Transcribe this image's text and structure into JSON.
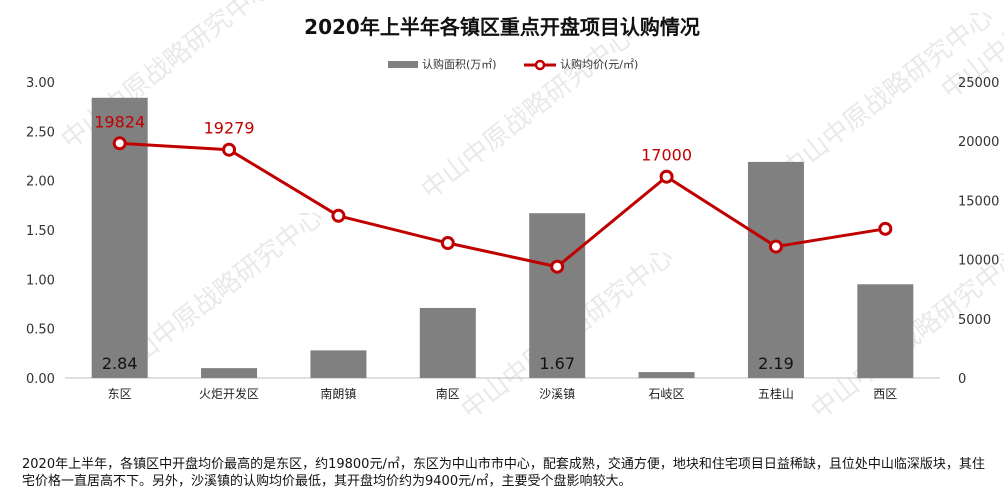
{
  "chart_data": {
    "type": "bar+line",
    "title": "2020年上半年各镇区重点开盘项目认购情况",
    "categories": [
      "东区",
      "火炬开发区",
      "南朗镇",
      "南区",
      "沙溪镇",
      "石岐区",
      "五桂山",
      "西区"
    ],
    "series": [
      {
        "name": "认购面积(万㎡)",
        "type": "bar",
        "axis": "left",
        "color": "#808080",
        "values": [
          2.84,
          0.1,
          0.28,
          0.71,
          1.67,
          0.06,
          2.19,
          0.95
        ]
      },
      {
        "name": "认购均价(元/㎡)",
        "type": "line",
        "axis": "right",
        "color": "#c00000",
        "values": [
          19824,
          19279,
          13700,
          11400,
          9400,
          17000,
          11100,
          12600
        ]
      }
    ],
    "bar_labels": [
      {
        "index": 0,
        "text": "2.84"
      },
      {
        "index": 4,
        "text": "1.67"
      },
      {
        "index": 6,
        "text": "2.19"
      }
    ],
    "line_labels": [
      {
        "index": 0,
        "text": "19824"
      },
      {
        "index": 1,
        "text": "19279"
      },
      {
        "index": 5,
        "text": "17000"
      }
    ],
    "ylim_left": [
      0,
      3.0
    ],
    "yticks_left": [
      "0.00",
      "0.50",
      "1.00",
      "1.50",
      "2.00",
      "2.50",
      "3.00"
    ],
    "ylim_right": [
      0,
      25000
    ],
    "yticks_right": [
      "0",
      "5000",
      "10000",
      "15000",
      "20000",
      "25000"
    ],
    "legend_position": "top-center"
  },
  "watermark": "中山中原战略研究中心",
  "caption": "2020年上半年，各镇区中开盘均价最高的是东区，约19800元/㎡，东区为中山市市中心，配套成熟，交通方便，地块和住宅项目日益稀缺，且位处中山临深版块，其住宅价格一直居高不下。另外，沙溪镇的认购均价最低，其开盘均价约为9400元/㎡，主要受个盘影响较大。"
}
